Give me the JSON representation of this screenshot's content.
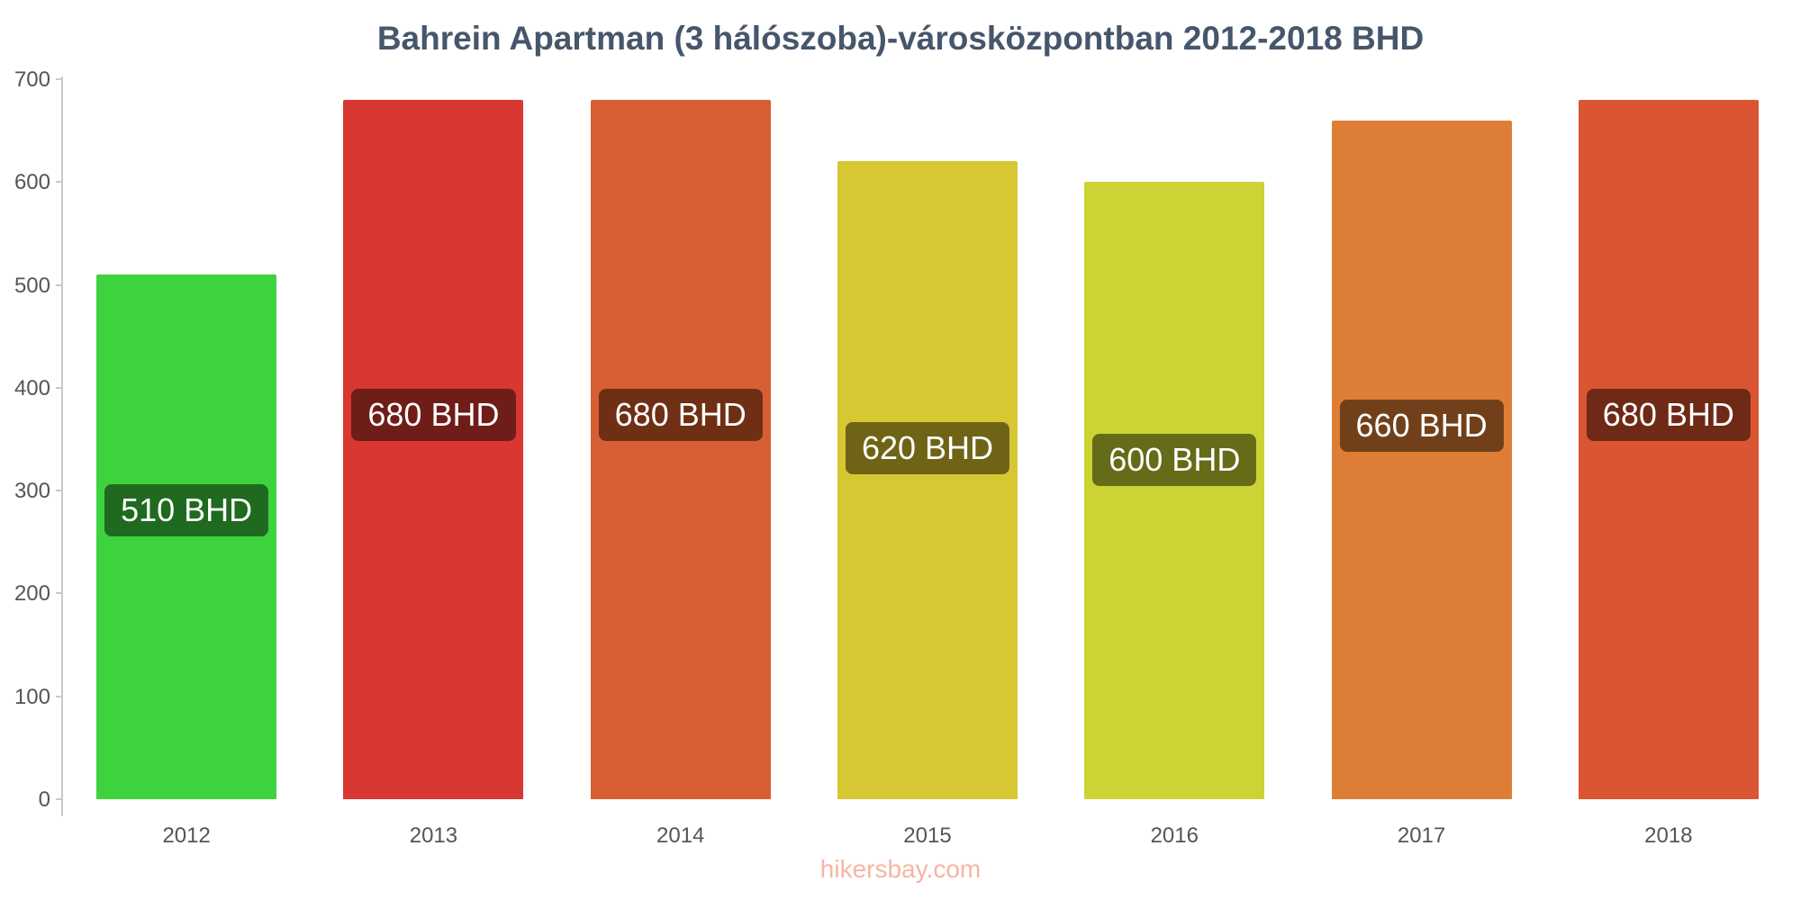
{
  "title": "Bahrein Apartman (3 hálószoba)-városközpontban 2012-2018 BHD",
  "footer": "hikersbay.com",
  "chart_data": {
    "type": "bar",
    "title": "Bahrein Apartman (3 hálószoba)-városközpontban 2012-2018 BHD",
    "categories": [
      "2012",
      "2013",
      "2014",
      "2015",
      "2016",
      "2017",
      "2018"
    ],
    "values": [
      510,
      680,
      680,
      620,
      600,
      660,
      680
    ],
    "value_labels": [
      "510 BHD",
      "680 BHD",
      "680 BHD",
      "620 BHD",
      "600 BHD",
      "660 BHD",
      "680 BHD"
    ],
    "bar_colors": [
      "#3ed33e",
      "#d83732",
      "#d85e33",
      "#d7c733",
      "#ccd435",
      "#de7e36",
      "#dc5532"
    ],
    "label_bg_colors": [
      "#1f6a1f",
      "#6f1d18",
      "#6f2f15",
      "#6f6416",
      "#656b17",
      "#71401b",
      "#6e2a16"
    ],
    "xlabel": "",
    "ylabel": "",
    "ylim": [
      0,
      700
    ],
    "y_ticks": [
      0,
      100,
      200,
      300,
      400,
      500,
      600,
      700
    ],
    "grid": "off",
    "legend": "none",
    "title_color": "#46566b",
    "axis_text_color": "#555555",
    "footer_color": "#f6b5a2"
  }
}
